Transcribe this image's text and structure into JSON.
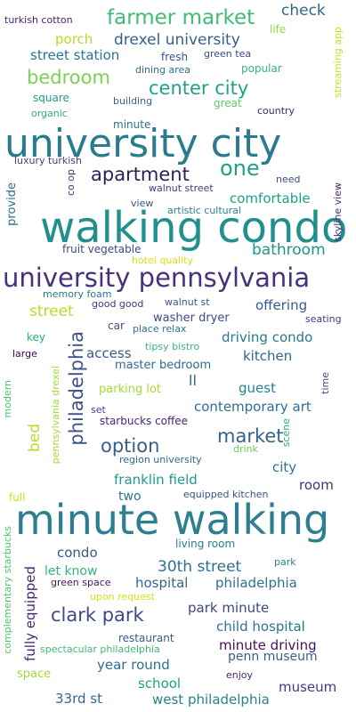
{
  "words": [
    {
      "text": "university city",
      "color": "#2a7b8e"
    },
    {
      "text": "walking condo",
      "color": "#21908d"
    },
    {
      "text": "minute walking",
      "color": "#2c7f8e"
    },
    {
      "text": "university pennsylvania",
      "color": "#46317e"
    },
    {
      "text": "philadelphia",
      "color": "#3b528b"
    },
    {
      "text": "farmer market",
      "color": "#3fbc73"
    },
    {
      "text": "center city",
      "color": "#1fa187"
    },
    {
      "text": "apartment",
      "color": "#2d1e5c"
    },
    {
      "text": "bedroom",
      "color": "#7ad151"
    },
    {
      "text": "drexel university",
      "color": "#34618d"
    },
    {
      "text": "one",
      "color": "#1fa187"
    },
    {
      "text": "check",
      "color": "#31678e"
    },
    {
      "text": "street station",
      "color": "#2a768e"
    },
    {
      "text": "porch",
      "color": "#b2dd2c"
    },
    {
      "text": "market",
      "color": "#33628d"
    },
    {
      "text": "option",
      "color": "#355f8d"
    },
    {
      "text": "clark park",
      "color": "#3e4989"
    },
    {
      "text": "30th street",
      "color": "#2c718e"
    },
    {
      "text": "bathroom",
      "color": "#1f948c"
    },
    {
      "text": "street",
      "color": "#b5de2b"
    },
    {
      "text": "comfortable",
      "color": "#1f9e89"
    },
    {
      "text": "driving condo",
      "color": "#29798e"
    },
    {
      "text": "kitchen",
      "color": "#32658e"
    },
    {
      "text": "contemporary art",
      "color": "#2d708e"
    },
    {
      "text": "guest",
      "color": "#25848e"
    },
    {
      "text": "offering",
      "color": "#38598c"
    },
    {
      "text": "access",
      "color": "#375a8c"
    },
    {
      "text": "franklin field",
      "color": "#1e9b8a"
    },
    {
      "text": "hospital",
      "color": "#31678e"
    },
    {
      "text": "philadelphia",
      "color": "#2c718e"
    },
    {
      "text": "park minute",
      "color": "#404688"
    },
    {
      "text": "child hospital",
      "color": "#2b758e"
    },
    {
      "text": "minute driving",
      "color": "#470f62"
    },
    {
      "text": "museum",
      "color": "#443a83"
    },
    {
      "text": "year round",
      "color": "#2d718e"
    },
    {
      "text": "west philadelphia",
      "color": "#26828e"
    },
    {
      "text": "school",
      "color": "#1fa187"
    },
    {
      "text": "33rd st",
      "color": "#2f6b8e"
    },
    {
      "text": "penn museum",
      "color": "#355e8d"
    },
    {
      "text": "condo",
      "color": "#3b528b"
    },
    {
      "text": "let know",
      "color": "#31b57b"
    },
    {
      "text": "fully equipped",
      "color": "#482878"
    },
    {
      "text": "city",
      "color": "#2c728e"
    },
    {
      "text": "room",
      "color": "#46327e"
    },
    {
      "text": "bed",
      "color": "#b5de2b"
    },
    {
      "text": "two",
      "color": "#2a788e"
    },
    {
      "text": "master bedroom",
      "color": "#2f6c8e"
    },
    {
      "text": "parking lot",
      "color": "#a5db36"
    },
    {
      "text": "space",
      "color": "#a0da39"
    },
    {
      "text": "restaurant",
      "color": "#38598c"
    },
    {
      "text": "provide",
      "color": "#2e6e8e"
    },
    {
      "text": "washer dryer",
      "color": "#3e4a89"
    },
    {
      "text": "turkish cotton",
      "color": "#481f70"
    },
    {
      "text": "life",
      "color": "#98d83e"
    },
    {
      "text": "fresh",
      "color": "#3b528b"
    },
    {
      "text": "green tea",
      "color": "#3e4989"
    },
    {
      "text": "dining area",
      "color": "#2e6f8e"
    },
    {
      "text": "popular",
      "color": "#34b679"
    },
    {
      "text": "square",
      "color": "#1e9c89"
    },
    {
      "text": "building",
      "color": "#355f8d"
    },
    {
      "text": "great",
      "color": "#5ec962"
    },
    {
      "text": "country",
      "color": "#482576"
    },
    {
      "text": "organic",
      "color": "#26ad81"
    },
    {
      "text": "minute",
      "color": "#2c728e"
    },
    {
      "text": "luxury turkish",
      "color": "#433e85"
    },
    {
      "text": "co op",
      "color": "#482878"
    },
    {
      "text": "need",
      "color": "#3e4c8a"
    },
    {
      "text": "walnut street",
      "color": "#44397e"
    },
    {
      "text": "view",
      "color": "#3b528b"
    },
    {
      "text": "artistic cultural",
      "color": "#25838e"
    },
    {
      "text": "skyline view",
      "color": "#482878"
    },
    {
      "text": "fruit vegetable",
      "color": "#3f4788"
    },
    {
      "text": "hotel quality",
      "color": "#d8e219"
    },
    {
      "text": "memory foam",
      "color": "#2a788e"
    },
    {
      "text": "good good",
      "color": "#46327e"
    },
    {
      "text": "walnut st",
      "color": "#38588c"
    },
    {
      "text": "seating",
      "color": "#443983"
    },
    {
      "text": "car",
      "color": "#3c508b"
    },
    {
      "text": "place relax",
      "color": "#2c738e"
    },
    {
      "text": "key",
      "color": "#29af7f"
    },
    {
      "text": "tipsy bistro",
      "color": "#38b977"
    },
    {
      "text": "large",
      "color": "#440154"
    },
    {
      "text": "ll",
      "color": "#31688e"
    },
    {
      "text": "modern",
      "color": "#4ac16d"
    },
    {
      "text": "pennsylvania drexel",
      "color": "#9fda3a"
    },
    {
      "text": "set",
      "color": "#3e4989"
    },
    {
      "text": "starbucks coffee",
      "color": "#482475"
    },
    {
      "text": "drink",
      "color": "#6ece58"
    },
    {
      "text": "scene",
      "color": "#2db27d"
    },
    {
      "text": "region university",
      "color": "#2f6c8e"
    },
    {
      "text": "time",
      "color": "#3e4a89"
    },
    {
      "text": "full",
      "color": "#d2e21b"
    },
    {
      "text": "equipped kitchen",
      "color": "#3d4d8a"
    },
    {
      "text": "complementary starbucks",
      "color": "#4ec36b"
    },
    {
      "text": "living room",
      "color": "#287c8e"
    },
    {
      "text": "park",
      "color": "#24868e"
    },
    {
      "text": "green space",
      "color": "#471365"
    },
    {
      "text": "upon request",
      "color": "#d2e21b"
    },
    {
      "text": "spectacular philadelphia",
      "color": "#3dbc74"
    },
    {
      "text": "enjoy",
      "color": "#482677"
    },
    {
      "text": "streaming app",
      "color": "#cae11f"
    }
  ]
}
